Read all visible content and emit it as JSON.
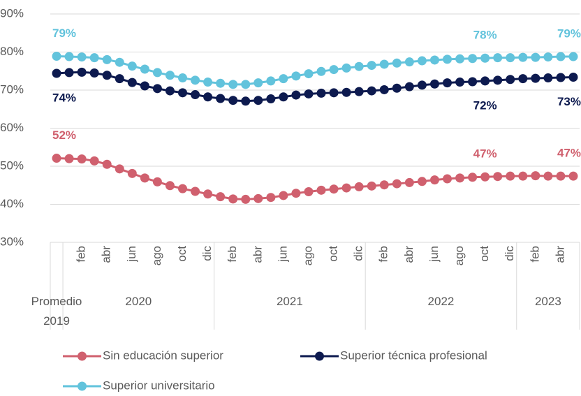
{
  "chart_data": {
    "type": "line",
    "categories": [
      null,
      null,
      "feb",
      null,
      "abr",
      null,
      "jun",
      null,
      "ago",
      null,
      "oct",
      null,
      "dic",
      null,
      "feb",
      null,
      "abr",
      null,
      "jun",
      null,
      "ago",
      null,
      "oct",
      null,
      "dic",
      null,
      "feb",
      null,
      "abr",
      null,
      "jun",
      null,
      "ago",
      null,
      "oct",
      null,
      "dic",
      null,
      "feb",
      null,
      "abr",
      null
    ],
    "groups": [
      {
        "label": "Promedio 2019",
        "count": 1
      },
      {
        "label": "2020",
        "count": 12
      },
      {
        "label": "2021",
        "count": 12
      },
      {
        "label": "2022",
        "count": 12
      },
      {
        "label": "2023",
        "count": 5
      }
    ],
    "series": [
      {
        "name": "Sin educación superior",
        "color": "#d0606e",
        "values": [
          52.1,
          52.0,
          51.9,
          51.4,
          50.5,
          49.3,
          48.1,
          46.9,
          45.9,
          44.9,
          44.1,
          43.4,
          42.7,
          42.0,
          41.4,
          41.3,
          41.5,
          41.8,
          42.3,
          42.9,
          43.3,
          43.7,
          44.0,
          44.3,
          44.6,
          44.8,
          45.1,
          45.4,
          45.7,
          46.0,
          46.4,
          46.7,
          46.9,
          47.1,
          47.2,
          47.3,
          47.4,
          47.4,
          47.5,
          47.4,
          47.4,
          47.4
        ],
        "value_labels": [
          "52%",
          null,
          null,
          null,
          null,
          null,
          null,
          null,
          null,
          null,
          null,
          null,
          null,
          null,
          null,
          null,
          null,
          null,
          null,
          null,
          null,
          null,
          null,
          null,
          null,
          null,
          null,
          null,
          null,
          null,
          null,
          null,
          null,
          null,
          "47%",
          null,
          null,
          null,
          null,
          null,
          null,
          "47%"
        ]
      },
      {
        "name": "Superior técnica profesional",
        "color": "#0d1a4f",
        "values": [
          74.4,
          74.6,
          74.7,
          74.5,
          73.9,
          73.0,
          72.0,
          71.1,
          70.4,
          69.8,
          69.3,
          68.8,
          68.2,
          67.8,
          67.3,
          67.1,
          67.3,
          67.7,
          68.2,
          68.7,
          69.0,
          69.2,
          69.3,
          69.4,
          69.6,
          69.8,
          70.1,
          70.5,
          70.9,
          71.3,
          71.6,
          71.9,
          72.1,
          72.2,
          72.4,
          72.6,
          72.8,
          73.0,
          73.1,
          73.2,
          73.3,
          73.4
        ],
        "value_labels": [
          "74%",
          null,
          null,
          null,
          null,
          null,
          null,
          null,
          null,
          null,
          null,
          null,
          null,
          null,
          null,
          null,
          null,
          null,
          null,
          null,
          null,
          null,
          null,
          null,
          null,
          null,
          null,
          null,
          null,
          null,
          null,
          null,
          null,
          null,
          "72%",
          null,
          null,
          null,
          null,
          null,
          null,
          "73%"
        ]
      },
      {
        "name": "Superior universitario",
        "color": "#62c3dc",
        "values": [
          78.9,
          78.8,
          78.7,
          78.5,
          78.0,
          77.3,
          76.3,
          75.5,
          74.6,
          73.9,
          73.2,
          72.6,
          72.1,
          71.8,
          71.5,
          71.5,
          71.9,
          72.4,
          73.0,
          73.7,
          74.3,
          74.9,
          75.4,
          75.8,
          76.2,
          76.5,
          76.8,
          77.1,
          77.4,
          77.7,
          77.9,
          78.1,
          78.2,
          78.3,
          78.4,
          78.5,
          78.5,
          78.6,
          78.6,
          78.7,
          78.8,
          78.8
        ],
        "value_labels": [
          "79%",
          null,
          null,
          null,
          null,
          null,
          null,
          null,
          null,
          null,
          null,
          null,
          null,
          null,
          null,
          null,
          null,
          null,
          null,
          null,
          null,
          null,
          null,
          null,
          null,
          null,
          null,
          null,
          null,
          null,
          null,
          null,
          null,
          null,
          "78%",
          null,
          null,
          null,
          null,
          null,
          null,
          "79%"
        ]
      }
    ],
    "ylim": [
      30,
      90
    ],
    "yticks": [
      {
        "value": 30,
        "label": "30%"
      },
      {
        "value": 40,
        "label": "40%"
      },
      {
        "value": 50,
        "label": "50%"
      },
      {
        "value": 60,
        "label": "60%"
      },
      {
        "value": 70,
        "label": "70%"
      },
      {
        "value": 80,
        "label": "80%"
      },
      {
        "value": 90,
        "label": "90%"
      }
    ],
    "grid": true
  }
}
